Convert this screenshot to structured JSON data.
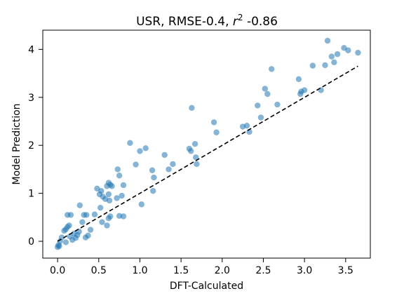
{
  "chart_data": {
    "type": "scatter",
    "title": "USR, RMSE-0.4, r² -0.86",
    "title_parts": {
      "prefix": "USR, RMSE-0.4, ",
      "r": "r",
      "sup": "2",
      "suffix": " -0.86"
    },
    "xlabel": "DFT-Calculated",
    "ylabel": "Model Prediction",
    "xlim": [
      -0.18,
      3.8
    ],
    "ylim": [
      -0.35,
      4.4
    ],
    "xticks": [
      0.0,
      0.5,
      1.0,
      1.5,
      2.0,
      2.5,
      3.0,
      3.5
    ],
    "xtick_labels": [
      "0.0",
      "0.5",
      "1.0",
      "1.5",
      "2.0",
      "2.5",
      "3.0",
      "3.5"
    ],
    "yticks": [
      0,
      1,
      2,
      3,
      4
    ],
    "ytick_labels": [
      "0",
      "1",
      "2",
      "3",
      "4"
    ],
    "grid": false,
    "point_color": "#1f77b4",
    "point_alpha": 0.55,
    "reference_line": {
      "style": "dashed",
      "color": "#000000",
      "x": [
        0.0,
        3.65
      ],
      "y": [
        0.0,
        3.65
      ]
    },
    "points": [
      [
        0.0,
        -0.12
      ],
      [
        0.01,
        -0.08
      ],
      [
        0.02,
        -0.1
      ],
      [
        0.03,
        0.0
      ],
      [
        0.05,
        0.08
      ],
      [
        0.08,
        0.22
      ],
      [
        0.1,
        0.25
      ],
      [
        0.12,
        0.3
      ],
      [
        0.14,
        0.33
      ],
      [
        0.12,
        0.55
      ],
      [
        0.16,
        0.55
      ],
      [
        0.1,
        -0.02
      ],
      [
        0.15,
        0.1
      ],
      [
        0.18,
        0.03
      ],
      [
        0.2,
        0.16
      ],
      [
        0.22,
        0.07
      ],
      [
        0.24,
        0.13
      ],
      [
        0.26,
        0.2
      ],
      [
        0.27,
        0.75
      ],
      [
        0.3,
        0.4
      ],
      [
        0.32,
        0.55
      ],
      [
        0.35,
        0.55
      ],
      [
        0.34,
        0.08
      ],
      [
        0.37,
        0.12
      ],
      [
        0.4,
        0.24
      ],
      [
        0.45,
        0.56
      ],
      [
        0.48,
        1.1
      ],
      [
        0.51,
        0.98
      ],
      [
        0.53,
        1.05
      ],
      [
        0.52,
        0.7
      ],
      [
        0.54,
        0.4
      ],
      [
        0.55,
        0.93
      ],
      [
        0.58,
        0.88
      ],
      [
        0.6,
        1.15
      ],
      [
        0.62,
        1.22
      ],
      [
        0.64,
        1.18
      ],
      [
        0.66,
        1.15
      ],
      [
        0.62,
        0.98
      ],
      [
        0.63,
        0.85
      ],
      [
        0.6,
        0.33
      ],
      [
        0.62,
        0.48
      ],
      [
        0.64,
        0.52
      ],
      [
        0.72,
        0.9
      ],
      [
        0.75,
        0.53
      ],
      [
        0.8,
        0.52
      ],
      [
        0.73,
        1.5
      ],
      [
        0.75,
        1.37
      ],
      [
        0.78,
        0.95
      ],
      [
        0.8,
        1.17
      ],
      [
        0.88,
        2.05
      ],
      [
        0.95,
        1.6
      ],
      [
        1.0,
        1.88
      ],
      [
        1.07,
        1.94
      ],
      [
        1.02,
        0.77
      ],
      [
        1.15,
        1.48
      ],
      [
        1.17,
        1.33
      ],
      [
        1.16,
        1.05
      ],
      [
        1.3,
        1.8
      ],
      [
        1.35,
        1.5
      ],
      [
        1.4,
        1.61
      ],
      [
        1.6,
        1.93
      ],
      [
        1.62,
        1.88
      ],
      [
        1.63,
        2.78
      ],
      [
        1.67,
        2.03
      ],
      [
        1.68,
        1.75
      ],
      [
        1.69,
        1.61
      ],
      [
        1.9,
        2.48
      ],
      [
        1.93,
        2.27
      ],
      [
        2.25,
        2.39
      ],
      [
        2.3,
        2.41
      ],
      [
        2.33,
        2.28
      ],
      [
        2.43,
        2.83
      ],
      [
        2.47,
        2.58
      ],
      [
        2.52,
        3.18
      ],
      [
        2.55,
        3.07
      ],
      [
        2.6,
        3.59
      ],
      [
        2.67,
        2.85
      ],
      [
        2.93,
        3.38
      ],
      [
        2.95,
        3.07
      ],
      [
        2.96,
        3.12
      ],
      [
        3.0,
        3.15
      ],
      [
        3.1,
        3.66
      ],
      [
        3.2,
        3.15
      ],
      [
        3.25,
        3.67
      ],
      [
        3.28,
        4.18
      ],
      [
        3.33,
        3.85
      ],
      [
        3.36,
        3.73
      ],
      [
        3.4,
        3.9
      ],
      [
        3.48,
        4.03
      ],
      [
        3.53,
        3.98
      ],
      [
        3.65,
        3.93
      ]
    ]
  }
}
